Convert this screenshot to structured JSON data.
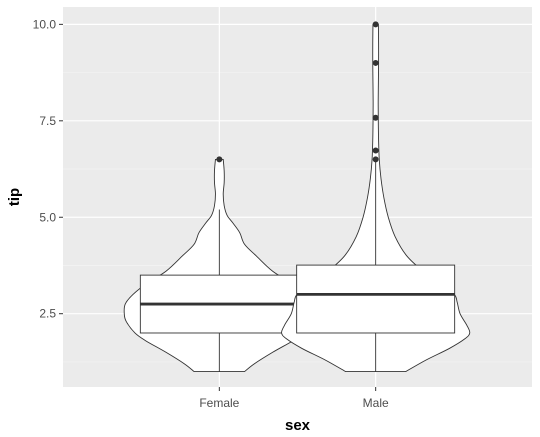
{
  "chart_data": {
    "type": "violin",
    "xlabel": "sex",
    "ylabel": "tip",
    "categories": [
      "Female",
      "Male"
    ],
    "ylim": [
      0.6,
      10.45
    ],
    "yticks": [
      2.5,
      5.0,
      7.5,
      10.0
    ],
    "ytick_labels": [
      "2.5",
      "5.0",
      "7.5",
      "10.0"
    ],
    "grid": true,
    "legend": "none",
    "colors": {
      "panel": "#ebebeb",
      "grid_major": "#ffffff",
      "grid_minor": "#f4f4f4",
      "violin_fill": "#ffffff",
      "outline": "#333333",
      "median": "#333333",
      "outlier": "#333333"
    },
    "series": [
      {
        "category": "Female",
        "box": {
          "lower_whisker": 1.0,
          "q1": 2.0,
          "median": 2.75,
          "q3": 3.5,
          "upper_whisker": 5.2
        },
        "outliers": [
          6.5
        ],
        "density": [
          [
            1.0,
            0.26
          ],
          [
            1.2,
            0.36
          ],
          [
            1.5,
            0.55
          ],
          [
            1.8,
            0.76
          ],
          [
            2.0,
            0.87
          ],
          [
            2.3,
            0.96
          ],
          [
            2.5,
            0.98
          ],
          [
            2.75,
            0.97
          ],
          [
            3.0,
            0.89
          ],
          [
            3.3,
            0.74
          ],
          [
            3.6,
            0.55
          ],
          [
            4.0,
            0.38
          ],
          [
            4.3,
            0.26
          ],
          [
            4.6,
            0.21
          ],
          [
            4.85,
            0.14
          ],
          [
            5.05,
            0.08
          ],
          [
            5.3,
            0.05
          ],
          [
            5.6,
            0.04
          ],
          [
            5.9,
            0.05
          ],
          [
            6.2,
            0.05
          ],
          [
            6.5,
            0.04
          ]
        ]
      },
      {
        "category": "Male",
        "box": {
          "lower_whisker": 1.0,
          "q1": 2.0,
          "median": 3.0,
          "q3": 3.76,
          "upper_whisker": 6.5
        },
        "outliers": [
          6.5,
          6.73,
          7.58,
          9.0,
          10.0
        ],
        "density": [
          [
            1.0,
            0.31
          ],
          [
            1.3,
            0.52
          ],
          [
            1.6,
            0.76
          ],
          [
            1.85,
            0.92
          ],
          [
            2.0,
            0.97
          ],
          [
            2.2,
            0.94
          ],
          [
            2.5,
            0.87
          ],
          [
            2.8,
            0.84
          ],
          [
            3.0,
            0.81
          ],
          [
            3.3,
            0.66
          ],
          [
            3.6,
            0.49
          ],
          [
            4.0,
            0.32
          ],
          [
            4.5,
            0.2
          ],
          [
            5.0,
            0.13
          ],
          [
            5.5,
            0.085
          ],
          [
            6.0,
            0.055
          ],
          [
            6.5,
            0.037
          ],
          [
            7.0,
            0.03
          ],
          [
            7.5,
            0.027
          ],
          [
            8.0,
            0.026
          ],
          [
            8.5,
            0.028
          ],
          [
            9.0,
            0.03
          ],
          [
            9.5,
            0.03
          ],
          [
            10.0,
            0.028
          ]
        ]
      }
    ]
  }
}
